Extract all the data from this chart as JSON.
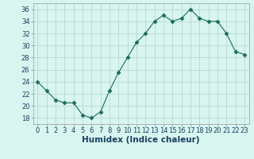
{
  "x": [
    0,
    1,
    2,
    3,
    4,
    5,
    6,
    7,
    8,
    9,
    10,
    11,
    12,
    13,
    14,
    15,
    16,
    17,
    18,
    19,
    20,
    21,
    22,
    23
  ],
  "y": [
    24,
    22.5,
    21,
    20.5,
    20.5,
    18.5,
    18,
    19,
    22.5,
    25.5,
    28,
    30.5,
    32,
    34,
    35,
    34,
    34.5,
    36,
    34.5,
    34,
    34,
    32,
    29,
    28.5
  ],
  "line_color": "#1a6b5a",
  "marker": "D",
  "marker_size": 2.5,
  "bg_color": "#d8f5f0",
  "grid_color": "#b8d8d4",
  "xlabel": "Humidex (Indice chaleur)",
  "xlabel_fontsize": 7.5,
  "tick_color": "#1a4060",
  "ylim": [
    17,
    37
  ],
  "xlim": [
    -0.5,
    23.5
  ],
  "yticks": [
    18,
    20,
    22,
    24,
    26,
    28,
    30,
    32,
    34,
    36
  ],
  "xticks": [
    0,
    1,
    2,
    3,
    4,
    5,
    6,
    7,
    8,
    9,
    10,
    11,
    12,
    13,
    14,
    15,
    16,
    17,
    18,
    19,
    20,
    21,
    22,
    23
  ],
  "tick_fontsize": 6,
  "line_width": 0.8
}
